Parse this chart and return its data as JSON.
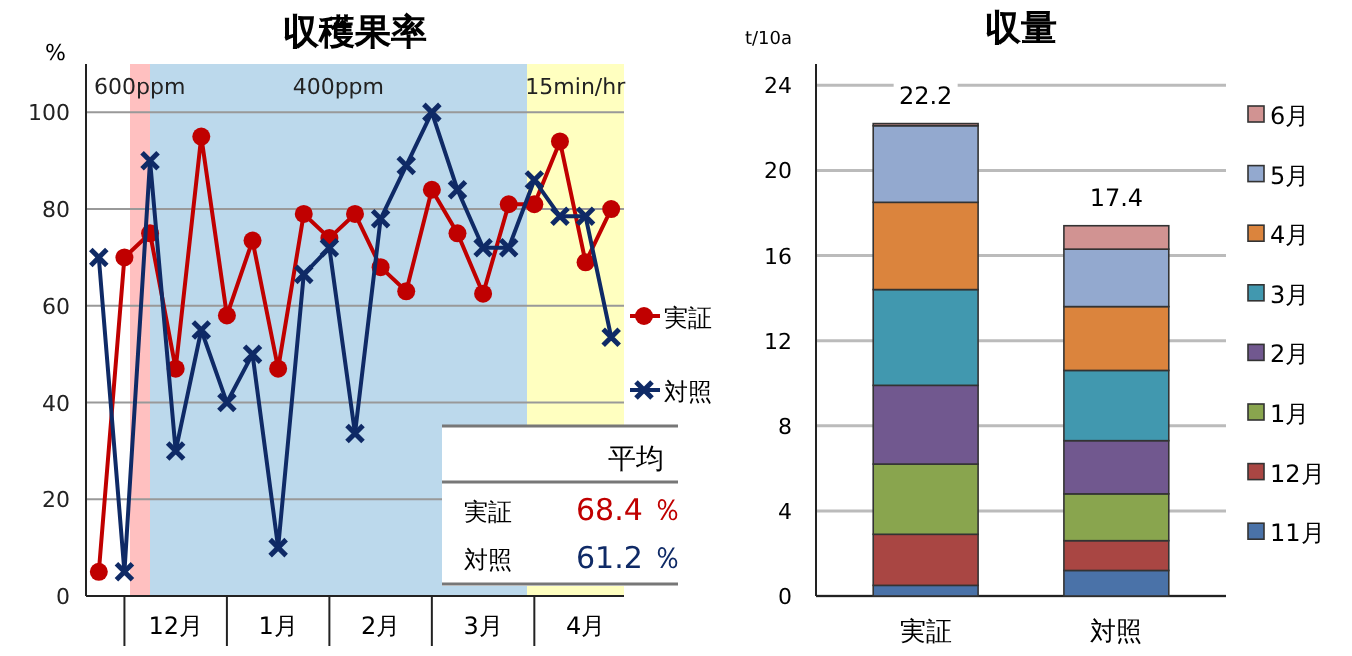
{
  "chart_data": [
    {
      "type": "line",
      "title": "収穫果率",
      "ylabel": "%",
      "categories": [
        null,
        null,
        null,
        "12月",
        null,
        null,
        null,
        "1月",
        null,
        null,
        null,
        "2月",
        null,
        null,
        null,
        "3月",
        null,
        null,
        null,
        "4月",
        null
      ],
      "ylim": [
        0,
        110
      ],
      "yticks": [
        0,
        20,
        40,
        60,
        80,
        100
      ],
      "grid": "y",
      "legend": "right",
      "series": [
        {
          "name": "実証",
          "color": "#c00000",
          "marker": "circle",
          "values": [
            5,
            70,
            75,
            47,
            95,
            58,
            73.5,
            47,
            79,
            74,
            79,
            68,
            63,
            84,
            75,
            62.5,
            81,
            81,
            94,
            69,
            80
          ]
        },
        {
          "name": "対照",
          "color": "#0f2a66",
          "marker": "cross",
          "values": [
            70,
            5,
            90,
            30,
            55,
            40,
            50,
            10,
            66.5,
            72,
            33.6,
            78,
            89,
            100,
            84,
            72,
            72,
            86,
            78.5,
            78.5,
            53.5
          ]
        }
      ],
      "annotations": [
        "600ppm",
        "400ppm",
        "15min/hr",
        "平均",
        "実証",
        "68.4 ％",
        "対照",
        "61.2 ％"
      ]
    },
    {
      "type": "bar",
      "title": "収量",
      "ylabel": "t/10a",
      "categories": [
        "実証",
        "対照"
      ],
      "stacked": true,
      "ylim": [
        0,
        25
      ],
      "yticks": [
        0,
        4,
        8,
        12,
        16,
        20,
        24
      ],
      "grid": "y",
      "legend": "right",
      "totals": [
        "22.2",
        "17.4"
      ],
      "series": [
        {
          "name": "11月",
          "color": "#4a72a8",
          "values": [
            0.5,
            1.2
          ]
        },
        {
          "name": "12月",
          "color": "#a94643",
          "values": [
            2.4,
            1.4
          ]
        },
        {
          "name": "1月",
          "color": "#89a54e",
          "values": [
            3.3,
            2.2
          ]
        },
        {
          "name": "2月",
          "color": "#71588f",
          "values": [
            3.7,
            2.5
          ]
        },
        {
          "name": "3月",
          "color": "#4198af",
          "values": [
            4.5,
            3.3
          ]
        },
        {
          "name": "4月",
          "color": "#db843d",
          "values": [
            4.1,
            3.0
          ]
        },
        {
          "name": "5月",
          "color": "#93a9cf",
          "values": [
            3.6,
            2.7
          ]
        },
        {
          "name": "6月",
          "color": "#d19392",
          "values": [
            0.1,
            1.1
          ]
        }
      ]
    }
  ]
}
